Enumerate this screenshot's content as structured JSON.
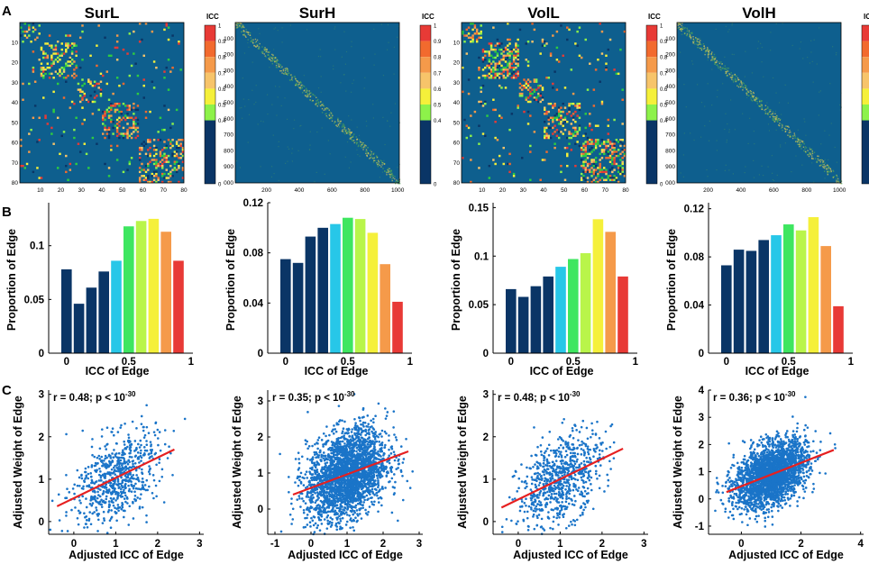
{
  "panel_letters": [
    "A",
    "B",
    "C"
  ],
  "icc_label": "ICC",
  "colorbar_ticks": [
    "1",
    "0.9",
    "0.8",
    "0.7",
    "0.6",
    "0.5",
    "0.4",
    "0"
  ],
  "colorbar_values": [
    1,
    0.9,
    0.8,
    0.7,
    0.6,
    0.5,
    0.4,
    0
  ],
  "colors": {
    "background_cell": "#0e5f8e",
    "dark_bin": "#0a3566",
    "regression": "#e62020",
    "scatter": "#1a74c8",
    "icc_bins": [
      "#0a3566",
      "#0a3566",
      "#0a3566",
      "#0a3566",
      "#0a3566",
      "#2ecc40",
      "#8df24a",
      "#f5f03a",
      "#f7c46a",
      "#f59a4a",
      "#f26a2e",
      "#e83a36"
    ]
  },
  "chart_data": [
    {
      "type": "heatmap",
      "panel": "A",
      "title": "SurL",
      "x_ticks": [
        "10",
        "20",
        "30",
        "40",
        "50",
        "60",
        "70",
        "80"
      ],
      "y_ticks": [
        "10",
        "20",
        "30",
        "40",
        "50",
        "60",
        "70",
        "80"
      ],
      "n": 80,
      "block_structure": [
        [
          0,
          10
        ],
        [
          10,
          28
        ],
        [
          28,
          40
        ],
        [
          40,
          58
        ],
        [
          58,
          80
        ]
      ],
      "density": 0.35
    },
    {
      "type": "heatmap",
      "panel": "A",
      "title": "SurH",
      "x_ticks": [
        "200",
        "400",
        "600",
        "800",
        "1000"
      ],
      "y_ticks": [
        "100",
        "200",
        "300",
        "400",
        "500",
        "600",
        "700",
        "800",
        "900",
        "000"
      ],
      "n": 1000,
      "density": 0.01
    },
    {
      "type": "heatmap",
      "panel": "A",
      "title": "VolL",
      "x_ticks": [
        "10",
        "20",
        "30",
        "40",
        "50",
        "60",
        "70",
        "80"
      ],
      "y_ticks": [
        "10",
        "20",
        "30",
        "40",
        "50",
        "60",
        "70",
        "80"
      ],
      "n": 80,
      "block_structure": [
        [
          0,
          10
        ],
        [
          10,
          28
        ],
        [
          28,
          40
        ],
        [
          40,
          58
        ],
        [
          58,
          80
        ]
      ],
      "density": 0.42
    },
    {
      "type": "heatmap",
      "panel": "A",
      "title": "VolH",
      "x_ticks": [
        "200",
        "400",
        "600",
        "800",
        "1000"
      ],
      "y_ticks": [
        "100",
        "200",
        "300",
        "400",
        "500",
        "600",
        "700",
        "800",
        "900",
        "000"
      ],
      "n": 1000,
      "density": 0.012
    },
    {
      "type": "bar",
      "panel": "B",
      "xlabel": "ICC of Edge",
      "ylabel": "Proportion of Edge",
      "x_ticks": [
        "0",
        "0.5",
        "1"
      ],
      "y_ticks": [
        "0",
        "0.05",
        "0.1"
      ],
      "ylim": [
        0,
        0.14
      ],
      "values": [
        0.078,
        0.046,
        0.061,
        0.076,
        0.086,
        0.118,
        0.123,
        0.125,
        0.113,
        0.086
      ]
    },
    {
      "type": "bar",
      "panel": "B",
      "xlabel": "ICC of Edge",
      "ylabel": "Proportion of Edge",
      "x_ticks": [
        "0",
        "0.5",
        "1"
      ],
      "y_ticks": [
        "0",
        "0.04",
        "0.08",
        "0.12"
      ],
      "ylim": [
        0,
        0.12
      ],
      "values": [
        0.075,
        0.072,
        0.093,
        0.1,
        0.103,
        0.108,
        0.107,
        0.096,
        0.071,
        0.041
      ]
    },
    {
      "type": "bar",
      "panel": "B",
      "xlabel": "ICC of Edge",
      "ylabel": "Proportion of Edge",
      "x_ticks": [
        "0",
        "0.5",
        "1"
      ],
      "y_ticks": [
        "0",
        "0.05",
        "0.1",
        "0.15"
      ],
      "ylim": [
        0,
        0.155
      ],
      "values": [
        0.066,
        0.058,
        0.069,
        0.079,
        0.089,
        0.097,
        0.103,
        0.138,
        0.125,
        0.079
      ]
    },
    {
      "type": "bar",
      "panel": "B",
      "xlabel": "ICC of Edge",
      "ylabel": "Proportion of Edge",
      "x_ticks": [
        "0",
        "0.5",
        "1"
      ],
      "y_ticks": [
        "0",
        "0.04",
        "0.08",
        "0.12"
      ],
      "ylim": [
        0,
        0.125
      ],
      "values": [
        0.073,
        0.086,
        0.085,
        0.094,
        0.098,
        0.107,
        0.102,
        0.113,
        0.089,
        0.039
      ]
    },
    {
      "type": "scatter",
      "panel": "C",
      "stat_text": "r = 0.48; p < 10",
      "stat_exp": "-30",
      "xlabel": "Adjusted ICC of Edge",
      "ylabel": "Adjusted Weight of Edge",
      "x_ticks": [
        "0",
        "1",
        "2",
        "3"
      ],
      "y_ticks": [
        "0",
        "1",
        "2",
        "3"
      ],
      "xlim": [
        -0.6,
        3.1
      ],
      "ylim": [
        -0.3,
        3.1
      ],
      "fit": {
        "x": [
          -0.4,
          2.4
        ],
        "y": [
          0.36,
          1.7
        ]
      },
      "cloud": {
        "n": 700,
        "mean_x": 1.0,
        "sd_x": 0.5,
        "sd_y": 0.5
      }
    },
    {
      "type": "scatter",
      "panel": "C",
      "stat_text": "r = 0.35; p < 10",
      "stat_exp": "-30",
      "xlabel": "Adjusted ICC of Edge",
      "ylabel": "Adjusted Weight of Edge",
      "x_ticks": [
        "-1",
        "0",
        "1",
        "2",
        "3"
      ],
      "y_ticks": [
        "0",
        "1",
        "2",
        "3"
      ],
      "xlim": [
        -1.2,
        3.1
      ],
      "ylim": [
        -0.7,
        3.3
      ],
      "fit": {
        "x": [
          -0.5,
          2.7
        ],
        "y": [
          0.4,
          1.6
        ]
      },
      "cloud": {
        "n": 2600,
        "mean_x": 1.0,
        "sd_x": 0.55,
        "sd_y": 0.6
      }
    },
    {
      "type": "scatter",
      "panel": "C",
      "stat_text": "r = 0.48; p < 10",
      "stat_exp": "-30",
      "xlabel": "Adjusted ICC of Edge",
      "ylabel": "Adjusted Weight of Edge",
      "x_ticks": [
        "0",
        "1",
        "2",
        "3"
      ],
      "y_ticks": [
        "0",
        "1",
        "2",
        "3"
      ],
      "xlim": [
        -0.6,
        3.1
      ],
      "ylim": [
        -0.3,
        3.1
      ],
      "fit": {
        "x": [
          -0.4,
          2.5
        ],
        "y": [
          0.33,
          1.72
        ]
      },
      "cloud": {
        "n": 750,
        "mean_x": 1.0,
        "sd_x": 0.5,
        "sd_y": 0.5
      }
    },
    {
      "type": "scatter",
      "panel": "C",
      "stat_text": "r = 0.36; p < 10",
      "stat_exp": "-30",
      "xlabel": "Adjusted ICC of Edge",
      "ylabel": "Adjusted Weight of Edge",
      "x_ticks": [
        "0",
        "2",
        "4"
      ],
      "y_ticks": [
        "-1",
        "0",
        "1",
        "2",
        "3",
        "4"
      ],
      "xlim": [
        -1.1,
        4.1
      ],
      "ylim": [
        -1.3,
        4.0
      ],
      "fit": {
        "x": [
          -0.5,
          3.1
        ],
        "y": [
          0.25,
          1.8
        ]
      },
      "cloud": {
        "n": 2600,
        "mean_x": 1.0,
        "sd_x": 0.6,
        "sd_y": 0.55
      }
    }
  ]
}
